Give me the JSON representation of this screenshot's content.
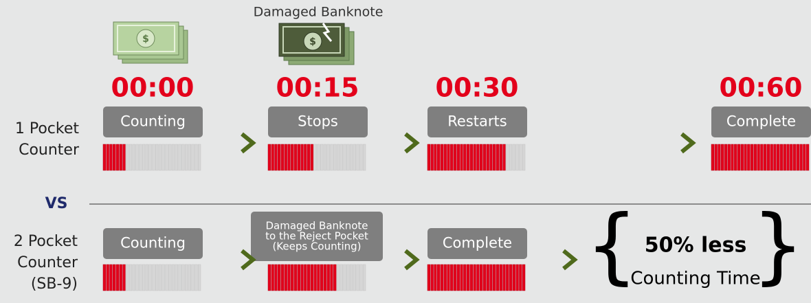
{
  "caption": "Damaged Banknote",
  "separator": "VS",
  "segments": 30,
  "one_pocket": {
    "label": [
      "1 Pocket",
      "Counter"
    ],
    "steps": [
      {
        "time": "00:00",
        "text": [
          "Counting"
        ],
        "filled": 7
      },
      {
        "time": "00:15",
        "text": [
          "Stops"
        ],
        "filled": 14
      },
      {
        "time": "00:30",
        "text": [
          "Restarts"
        ],
        "filled": 24
      },
      {
        "time": "00:60",
        "text": [
          "Complete"
        ],
        "filled": 30
      }
    ]
  },
  "two_pocket": {
    "label": [
      "2 Pocket",
      "Counter",
      "(SB-9)"
    ],
    "steps": [
      {
        "text": [
          "Counting"
        ],
        "filled": 7
      },
      {
        "text": [
          "Damaged Banknote",
          "to the Reject Pocket",
          "(Keeps Counting)"
        ],
        "filled": 21
      },
      {
        "text": [
          "Complete"
        ],
        "filled": 30
      }
    ],
    "result": [
      "50% less",
      "Counting Time"
    ]
  }
}
